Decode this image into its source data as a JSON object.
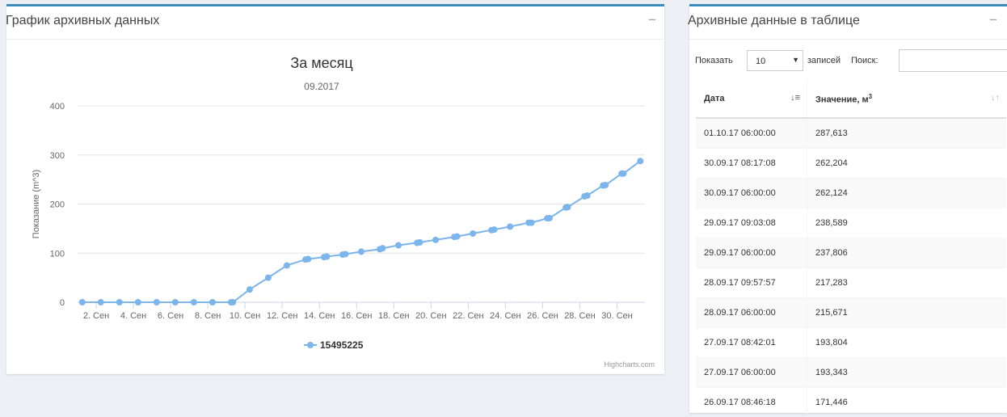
{
  "chart_panel": {
    "title": "График архивных данных",
    "collapse": "−"
  },
  "table_panel": {
    "title": "Архивные данные в таблице",
    "collapse": "−"
  },
  "controls": {
    "show_label": "Показать",
    "length_value": "10",
    "records_label": "записей",
    "search_label": "Поиск:",
    "search_value": ""
  },
  "table": {
    "col_date": "Дата",
    "col_value": "Значение, м",
    "col_value_sup": "3",
    "rows": [
      {
        "date": "01.10.17 06:00:00",
        "value": "287,613"
      },
      {
        "date": "30.09.17 08:17:08",
        "value": "262,204"
      },
      {
        "date": "30.09.17 06:00:00",
        "value": "262,124"
      },
      {
        "date": "29.09.17 09:03:08",
        "value": "238,589"
      },
      {
        "date": "29.09.17 06:00:00",
        "value": "237,806"
      },
      {
        "date": "28.09.17 09:57:57",
        "value": "217,283"
      },
      {
        "date": "28.09.17 06:00:00",
        "value": "215,671"
      },
      {
        "date": "27.09.17 08:42:01",
        "value": "193,804"
      },
      {
        "date": "27.09.17 06:00:00",
        "value": "193,343"
      },
      {
        "date": "26.09.17 08:46:18",
        "value": "171,446"
      }
    ]
  },
  "chart_data": {
    "type": "line",
    "title": "За месяц",
    "subtitle": "09.2017",
    "ylabel": "Показание (m^3)",
    "ylim": [
      0,
      400
    ],
    "yticks": [
      0,
      100,
      200,
      300,
      400
    ],
    "xlim": [
      1,
      31.5
    ],
    "xticks": [
      {
        "x": 2,
        "label": "2. Сен"
      },
      {
        "x": 4,
        "label": "4. Сен"
      },
      {
        "x": 6,
        "label": "6. Сен"
      },
      {
        "x": 8,
        "label": "8. Сен"
      },
      {
        "x": 10,
        "label": "10. Сен"
      },
      {
        "x": 12,
        "label": "12. Сен"
      },
      {
        "x": 14,
        "label": "14. Сен"
      },
      {
        "x": 16,
        "label": "16. Сен"
      },
      {
        "x": 18,
        "label": "18. Сен"
      },
      {
        "x": 20,
        "label": "20. Сен"
      },
      {
        "x": 22,
        "label": "22. Сен"
      },
      {
        "x": 24,
        "label": "24. Сен"
      },
      {
        "x": 26,
        "label": "26. Сен"
      },
      {
        "x": 28,
        "label": "28. Сен"
      },
      {
        "x": 30,
        "label": "30. Сен"
      }
    ],
    "series": [
      {
        "name": "15495225",
        "color": "#7cb5ec",
        "points": [
          [
            1.25,
            0
          ],
          [
            2.25,
            0
          ],
          [
            3.25,
            0
          ],
          [
            4.25,
            0
          ],
          [
            5.25,
            0
          ],
          [
            6.25,
            0
          ],
          [
            7.25,
            0
          ],
          [
            8.25,
            0
          ],
          [
            9.25,
            0
          ],
          [
            9.35,
            0
          ],
          [
            10.25,
            26
          ],
          [
            11.25,
            50
          ],
          [
            12.25,
            75
          ],
          [
            13.25,
            87
          ],
          [
            13.4,
            88
          ],
          [
            14.25,
            92
          ],
          [
            14.4,
            93
          ],
          [
            15.25,
            97
          ],
          [
            15.4,
            98
          ],
          [
            16.25,
            103
          ],
          [
            17.25,
            108
          ],
          [
            17.4,
            110
          ],
          [
            18.25,
            116
          ],
          [
            19.25,
            121
          ],
          [
            19.4,
            122
          ],
          [
            20.25,
            127
          ],
          [
            21.25,
            133
          ],
          [
            21.4,
            134
          ],
          [
            22.25,
            140
          ],
          [
            23.25,
            147
          ],
          [
            23.4,
            148
          ],
          [
            24.25,
            154
          ],
          [
            25.25,
            162
          ],
          [
            25.4,
            162
          ],
          [
            26.25,
            171
          ],
          [
            26.37,
            171.4
          ],
          [
            27.25,
            193
          ],
          [
            27.35,
            193.8
          ],
          [
            28.25,
            215.7
          ],
          [
            28.4,
            217.3
          ],
          [
            29.25,
            237.8
          ],
          [
            29.38,
            238.6
          ],
          [
            30.25,
            262.1
          ],
          [
            30.35,
            262.2
          ],
          [
            31.25,
            287.6
          ]
        ]
      }
    ],
    "credits": "Highcharts.com",
    "grid": true,
    "legend_position": "bottom-center"
  }
}
